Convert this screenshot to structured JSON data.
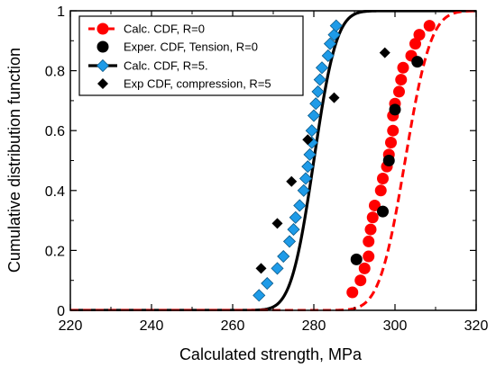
{
  "chart_data": {
    "type": "scatter",
    "xlabel": "Calculated strength, MPa",
    "ylabel": "Cumulative distribution function",
    "xlim": [
      220,
      320
    ],
    "ylim": [
      0,
      1
    ],
    "xticks": [
      "220",
      "240",
      "260",
      "280",
      "300",
      "320"
    ],
    "yticks": [
      "0",
      "0.2",
      "0.4",
      "0.6",
      "0.8",
      "1"
    ],
    "grid": false,
    "legend_position": "top-left",
    "series": [
      {
        "name": "Calc. CDF, R=0",
        "style": "dashed-line-with-circles",
        "color": "#ff0000",
        "curve": {
          "median": 302.5,
          "spread": 5.0
        },
        "markers": [
          [
            289.5,
            0.06
          ],
          [
            291.5,
            0.1
          ],
          [
            292.5,
            0.14
          ],
          [
            293.5,
            0.18
          ],
          [
            293.5,
            0.23
          ],
          [
            294.0,
            0.27
          ],
          [
            294.5,
            0.31
          ],
          [
            295.0,
            0.35
          ],
          [
            296.5,
            0.4
          ],
          [
            297.0,
            0.44
          ],
          [
            298.0,
            0.48
          ],
          [
            298.5,
            0.52
          ],
          [
            299.0,
            0.56
          ],
          [
            299.5,
            0.6
          ],
          [
            299.5,
            0.65
          ],
          [
            300.0,
            0.69
          ],
          [
            301.0,
            0.73
          ],
          [
            301.5,
            0.77
          ],
          [
            302.0,
            0.81
          ],
          [
            304.0,
            0.85
          ],
          [
            305.0,
            0.89
          ],
          [
            306.0,
            0.92
          ],
          [
            308.5,
            0.95
          ]
        ]
      },
      {
        "name": "Exper. CDF, Tension, R=0",
        "style": "circles",
        "color": "#000000",
        "points": [
          [
            290.5,
            0.17
          ],
          [
            297.0,
            0.33
          ],
          [
            298.5,
            0.5
          ],
          [
            300.0,
            0.67
          ],
          [
            305.5,
            0.83
          ]
        ]
      },
      {
        "name": "Calc. CDF, R=5.",
        "style": "solid-line-with-diamonds",
        "color": "#000000",
        "marker_color": "#1e9be8",
        "curve": {
          "median": 280.0,
          "spread": 4.4
        },
        "markers": [
          [
            266.5,
            0.05
          ],
          [
            268.5,
            0.09
          ],
          [
            271.0,
            0.14
          ],
          [
            272.5,
            0.18
          ],
          [
            274.0,
            0.23
          ],
          [
            275.0,
            0.27
          ],
          [
            275.5,
            0.31
          ],
          [
            276.5,
            0.35
          ],
          [
            277.5,
            0.4
          ],
          [
            278.0,
            0.44
          ],
          [
            278.5,
            0.48
          ],
          [
            279.0,
            0.52
          ],
          [
            279.5,
            0.56
          ],
          [
            279.5,
            0.6
          ],
          [
            280.0,
            0.65
          ],
          [
            280.5,
            0.69
          ],
          [
            281.0,
            0.73
          ],
          [
            281.5,
            0.77
          ],
          [
            282.0,
            0.81
          ],
          [
            283.5,
            0.85
          ],
          [
            284.0,
            0.89
          ],
          [
            285.0,
            0.92
          ],
          [
            285.5,
            0.95
          ]
        ]
      },
      {
        "name": "Exp CDF, compression, R=5",
        "style": "diamonds",
        "color": "#000000",
        "points": [
          [
            267.0,
            0.14
          ],
          [
            271.0,
            0.29
          ],
          [
            274.5,
            0.43
          ],
          [
            278.5,
            0.57
          ],
          [
            285.0,
            0.71
          ],
          [
            297.5,
            0.86
          ]
        ]
      }
    ]
  }
}
